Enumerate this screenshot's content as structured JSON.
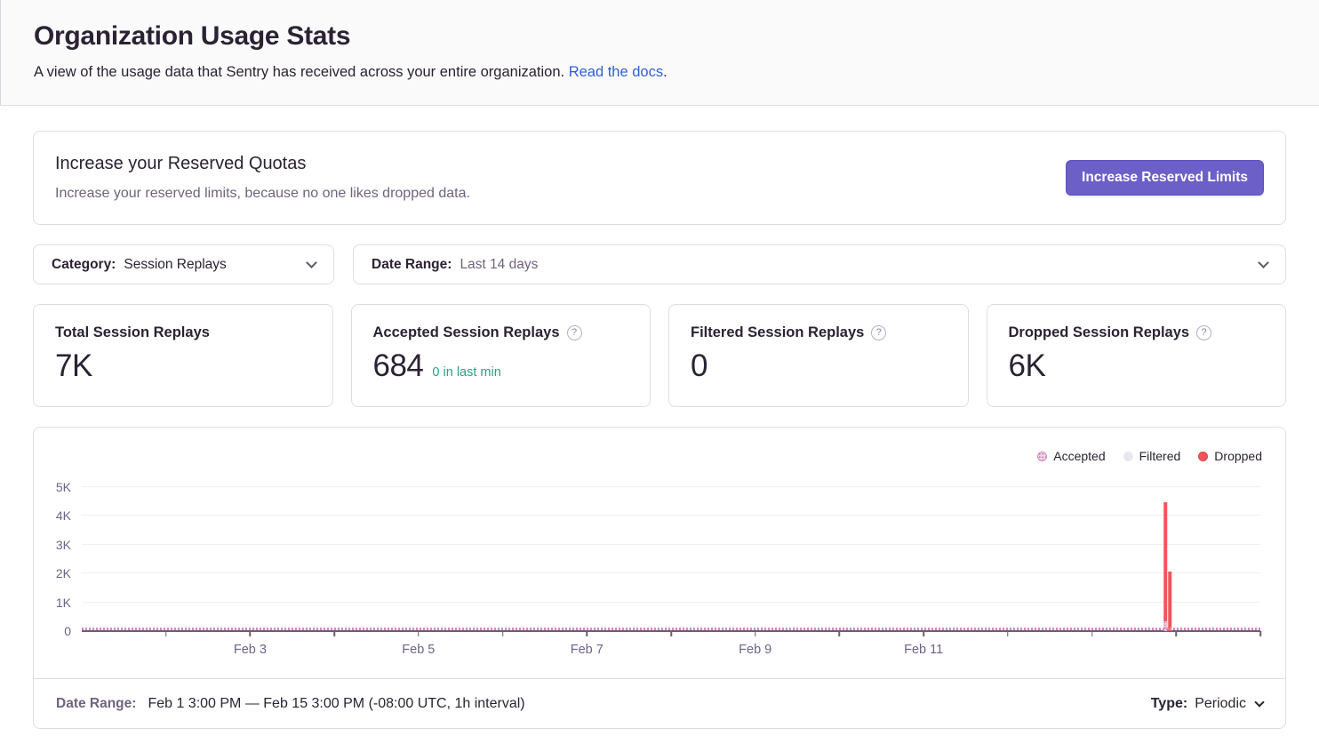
{
  "page": {
    "title": "Organization Usage Stats",
    "subtitle": "A view of the usage data that Sentry has received across your entire organization.",
    "subtitle_link": "Read the docs",
    "subtitle_period": "."
  },
  "quota_banner": {
    "title": "Increase your Reserved Quotas",
    "description": "Increase your reserved limits, because no one likes dropped data.",
    "button_label": "Increase Reserved Limits"
  },
  "filters": {
    "category": {
      "label": "Category:",
      "value": "Session Replays"
    },
    "date_range": {
      "label": "Date Range:",
      "value": "Last 14 days"
    }
  },
  "stat_cards": [
    {
      "title": "Total Session Replays",
      "value": "7K",
      "sub": "",
      "help_icon": false
    },
    {
      "title": "Accepted Session Replays",
      "value": "684",
      "sub": "0 in last min",
      "help_icon": true
    },
    {
      "title": "Filtered Session Replays",
      "value": "0",
      "sub": "",
      "help_icon": true
    },
    {
      "title": "Dropped Session Replays",
      "value": "6K",
      "sub": "",
      "help_icon": true
    }
  ],
  "icons": {
    "help_glyph": "?"
  },
  "chart_data": {
    "type": "bar",
    "title": "",
    "legend": [
      "Accepted",
      "Filtered",
      "Dropped"
    ],
    "legend_position": "top-right",
    "grid": true,
    "y_axis": {
      "ticks": [
        "0",
        "1K",
        "2K",
        "3K",
        "4K",
        "5K"
      ],
      "max": 5000
    },
    "x_axis": {
      "tick_days": [
        "Feb 2",
        "Feb 3",
        "Feb 4",
        "Feb 5",
        "Feb 6",
        "Feb 7",
        "Feb 8",
        "Feb 9",
        "Feb 10",
        "Feb 11",
        "Feb 12",
        "Feb 13",
        "Feb 14",
        "Feb 15"
      ],
      "labeled_ticks": [
        "Feb 3",
        "Feb 5",
        "Feb 7",
        "Feb 9",
        "Feb 11"
      ],
      "range_start": "Feb 1 3:00 PM",
      "range_end": "Feb 15 3:00 PM",
      "interval": "1h"
    },
    "series": [
      {
        "name": "Dropped",
        "color": "#f2555a",
        "spikes": [
          {
            "x_frac": 0.9196,
            "value": 4470
          },
          {
            "x_frac": 0.9232,
            "value": 2070
          }
        ]
      },
      {
        "name": "Accepted",
        "color": "#d787c0",
        "pattern": "dots",
        "baseline_strip": "tiny hourly accepted counts along the 0 axis",
        "spikes": [
          {
            "x_frac": 0.9196,
            "value": 330
          }
        ]
      },
      {
        "name": "Filtered",
        "color": "#e9e7ee",
        "spikes": []
      }
    ]
  },
  "chart_footer": {
    "label": "Date Range:",
    "value": "Feb 1 3:00 PM — Feb 15 3:00 PM (-08:00 UTC, 1h interval)",
    "type_label": "Type:",
    "type_value": "Periodic"
  },
  "colors": {
    "accent_purple": "#6c5fc7",
    "link_blue": "#2f5fdc",
    "accepted_pink": "#d787c0",
    "filtered_gray": "#e9e7ee",
    "dropped_red": "#f2555a",
    "success_green": "#2ba185",
    "border": "#e0dce5",
    "text_dark": "#2b2233",
    "text_gray": "#71637e"
  }
}
